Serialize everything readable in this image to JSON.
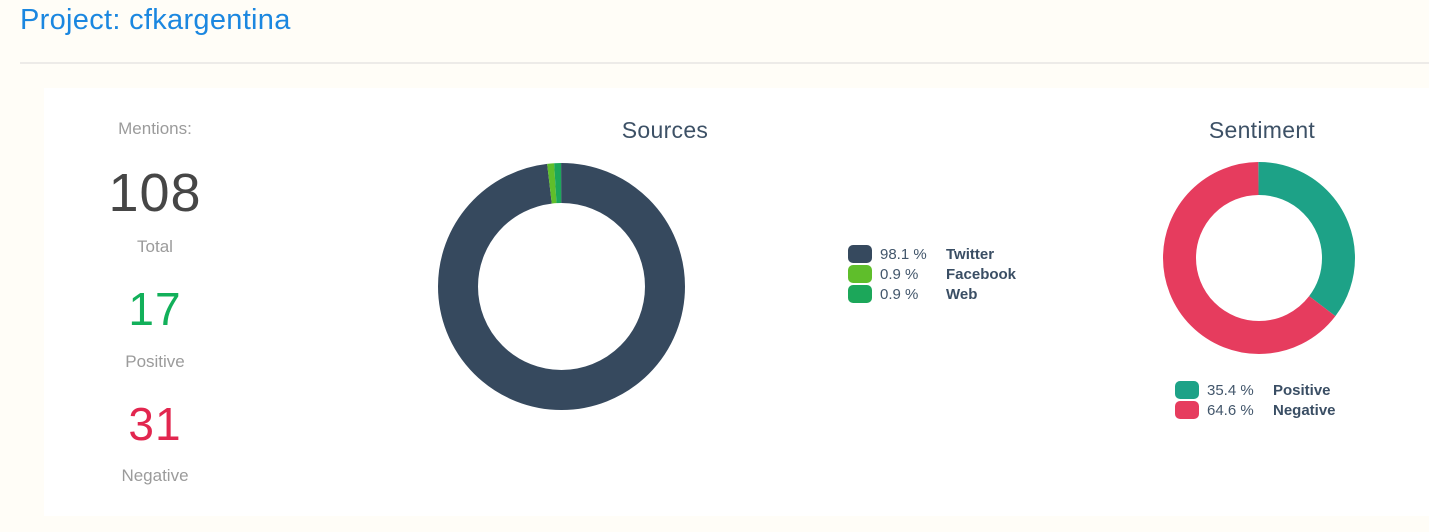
{
  "header": {
    "title": "Project: cfkargentina",
    "accent_color": "#1b87e0"
  },
  "stats": {
    "heading": "Mentions:",
    "items": [
      {
        "value": "108",
        "label": "Total",
        "color": "#464646"
      },
      {
        "value": "17",
        "label": "Positive",
        "color": "#12b05a"
      },
      {
        "value": "31",
        "label": "Negative",
        "color": "#e2264f"
      }
    ]
  },
  "chart_data": [
    {
      "type": "pie",
      "title": "Sources",
      "donut": true,
      "legend_position": "right",
      "units": "%",
      "series": [
        {
          "name": "Twitter",
          "value": 98.1,
          "display": "98.1 %",
          "color": "#36495e"
        },
        {
          "name": "Facebook",
          "value": 0.9,
          "display": "0.9 %",
          "color": "#5fbe2b"
        },
        {
          "name": "Web",
          "value": 0.9,
          "display": "0.9 %",
          "color": "#1ca75a"
        }
      ]
    },
    {
      "type": "pie",
      "title": "Sentiment",
      "donut": true,
      "legend_position": "bottom",
      "units": "%",
      "series": [
        {
          "name": "Positive",
          "value": 35.4,
          "display": "35.4 %",
          "color": "#1da287"
        },
        {
          "name": "Negative",
          "value": 64.6,
          "display": "64.6 %",
          "color": "#e63c5e"
        }
      ]
    }
  ]
}
